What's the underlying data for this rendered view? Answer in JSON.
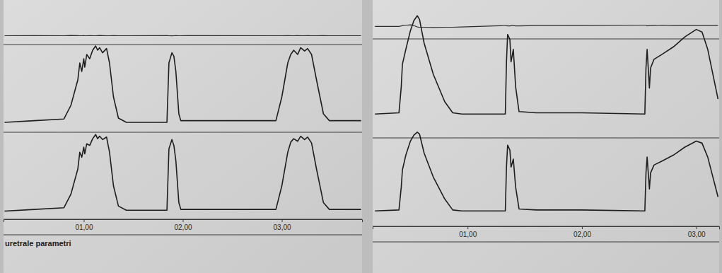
{
  "chart_data": [
    {
      "type": "line",
      "x": [
        0.2,
        0.5,
        0.8,
        0.87,
        0.94,
        0.96,
        0.98,
        1.0,
        1.01,
        1.03,
        1.06,
        1.09,
        1.12,
        1.14,
        1.16,
        1.19,
        1.23,
        1.26,
        1.3,
        1.35,
        1.43,
        1.84,
        1.86,
        1.89,
        1.91,
        1.93,
        1.96,
        1.98,
        2.05,
        2.94,
        3.0,
        3.06,
        3.09,
        3.12,
        3.16,
        3.19,
        3.23,
        3.26,
        3.3,
        3.35,
        3.42,
        3.48,
        3.8
      ],
      "series": [
        {
          "color": "#2b2b2b",
          "values": [
            50,
            51,
            50,
            52,
            51,
            50,
            50,
            51,
            50,
            50,
            51,
            50,
            50,
            51,
            52,
            51,
            50,
            50,
            51,
            50,
            50,
            51,
            50,
            49,
            50,
            51,
            50,
            50,
            51,
            50,
            50,
            51,
            50,
            50,
            51,
            50,
            50,
            51,
            50,
            50,
            51,
            50,
            50
          ]
        },
        {
          "color": "#1e1e1e",
          "values": [
            10,
            12,
            14,
            30,
            60,
            80,
            70,
            85,
            75,
            90,
            85,
            95,
            100,
            95,
            98,
            92,
            97,
            80,
            40,
            15,
            10,
            10,
            80,
            92,
            88,
            70,
            20,
            12,
            12,
            12,
            40,
            80,
            90,
            95,
            90,
            98,
            94,
            97,
            90,
            60,
            20,
            12,
            12
          ]
        },
        {
          "color": "#1e1e1e",
          "values": [
            8,
            10,
            12,
            28,
            58,
            78,
            72,
            84,
            76,
            88,
            86,
            94,
            99,
            94,
            97,
            93,
            96,
            78,
            38,
            14,
            9,
            9,
            82,
            93,
            86,
            68,
            18,
            10,
            10,
            10,
            38,
            78,
            90,
            94,
            91,
            97,
            93,
            96,
            89,
            58,
            18,
            10,
            10
          ]
        }
      ],
      "xlim": [
        0.19,
        3.81
      ],
      "xticks": [
        {
          "value": 1,
          "label": "01,00"
        },
        {
          "value": 2,
          "label": "02,00"
        },
        {
          "value": 3,
          "label": "03,00"
        }
      ],
      "ylim": [
        0,
        100
      ],
      "tick_labels": "x",
      "annotations": [
        "uretrale parametri"
      ]
    },
    {
      "type": "line",
      "x": [
        0.19,
        0.4,
        0.42,
        0.43,
        0.46,
        0.5,
        0.53,
        0.56,
        0.58,
        0.62,
        0.7,
        0.8,
        0.87,
        0.95,
        1.33,
        1.34,
        1.35,
        1.37,
        1.38,
        1.4,
        1.42,
        1.45,
        1.6,
        2.0,
        2.55,
        2.56,
        2.57,
        2.59,
        2.6,
        2.63,
        2.7,
        2.8,
        2.9,
        3.0,
        3.05,
        3.1,
        3.19
      ],
      "series": [
        {
          "color": "#2b2b2b",
          "values": [
            55,
            55,
            58,
            60,
            62,
            65,
            60,
            52,
            50,
            50,
            48,
            50,
            50,
            52,
            60,
            62,
            58,
            58,
            60,
            60,
            58,
            58,
            60,
            60,
            62,
            62,
            58,
            60,
            60,
            60,
            62,
            60,
            60,
            60,
            60,
            60,
            60
          ]
        },
        {
          "color": "#1e1e1e",
          "values": [
            18,
            19,
            40,
            58,
            70,
            85,
            93,
            97,
            94,
            75,
            50,
            28,
            19,
            18,
            18,
            60,
            82,
            78,
            60,
            70,
            40,
            20,
            19,
            19,
            18,
            55,
            70,
            39,
            55,
            62,
            66,
            72,
            80,
            86,
            84,
            70,
            30
          ]
        },
        {
          "color": "#1e1e1e",
          "values": [
            14,
            15,
            38,
            55,
            70,
            84,
            90,
            93,
            91,
            72,
            48,
            26,
            15,
            14,
            14,
            58,
            80,
            75,
            58,
            66,
            38,
            16,
            15,
            15,
            14,
            52,
            68,
            36,
            52,
            60,
            64,
            70,
            78,
            84,
            82,
            68,
            28
          ]
        }
      ],
      "xlim": [
        0.17,
        3.2
      ],
      "xticks": [
        {
          "value": 1,
          "label": "01,00"
        },
        {
          "value": 2,
          "label": "02,00"
        },
        {
          "value": 3,
          "label": "03,00"
        }
      ],
      "ylim": [
        0,
        100
      ],
      "tick_labels": "x"
    }
  ]
}
